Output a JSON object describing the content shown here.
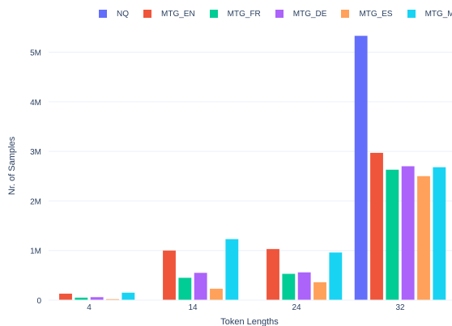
{
  "chart_data": {
    "type": "bar",
    "xlabel": "Token Lengths",
    "ylabel": "Nr. of Samples",
    "categories": [
      "4",
      "14",
      "24",
      "32"
    ],
    "ylim": [
      0,
      5400000
    ],
    "yticks": [
      0,
      1000000,
      2000000,
      3000000,
      4000000,
      5000000
    ],
    "ytick_labels": [
      "0",
      "1M",
      "2M",
      "3M",
      "4M",
      "5M"
    ],
    "legend_position": "top",
    "grid": true,
    "series": [
      {
        "name": "NQ",
        "color": "#636efa",
        "values": [
          0,
          0,
          0,
          5330000
        ]
      },
      {
        "name": "MTG_EN",
        "color": "#ef553b",
        "values": [
          130000,
          1000000,
          1030000,
          2970000
        ]
      },
      {
        "name": "MTG_FR",
        "color": "#00cc96",
        "values": [
          50000,
          450000,
          530000,
          2630000
        ]
      },
      {
        "name": "MTG_DE",
        "color": "#ab63fa",
        "values": [
          60000,
          550000,
          560000,
          2700000
        ]
      },
      {
        "name": "MTG_ES",
        "color": "#ffa15a",
        "values": [
          20000,
          230000,
          360000,
          2500000
        ]
      },
      {
        "name": "MTG_MULTI",
        "color": "#19d3f3",
        "values": [
          150000,
          1230000,
          960000,
          2680000
        ]
      }
    ]
  }
}
